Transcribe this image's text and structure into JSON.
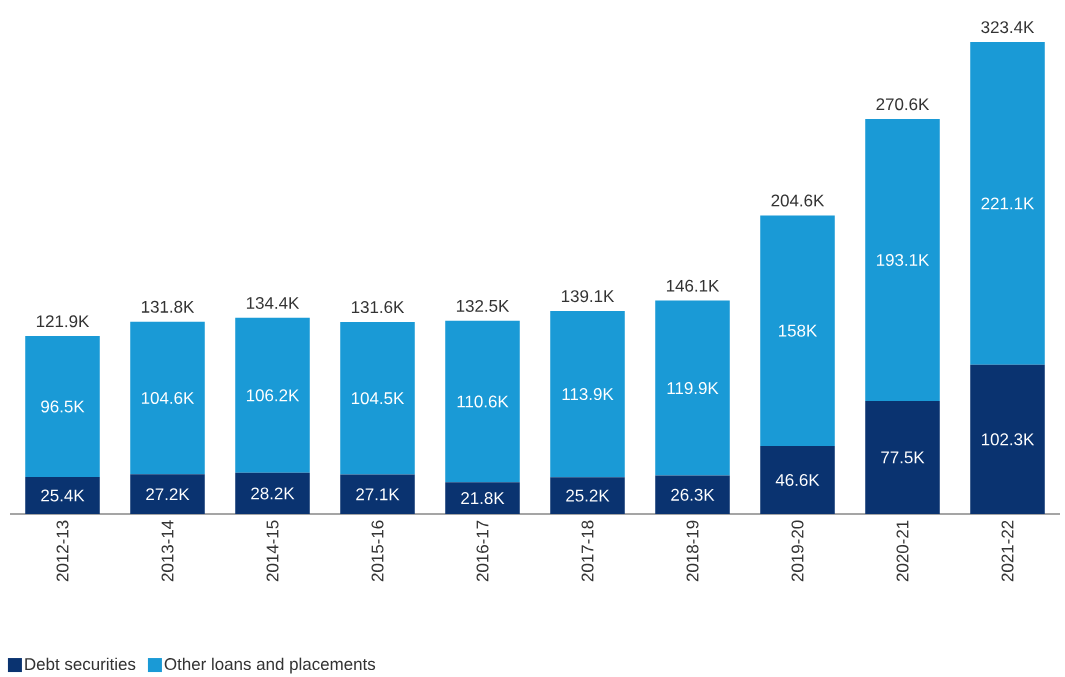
{
  "chart_data": {
    "type": "bar",
    "stacked": true,
    "legend": "bottom left",
    "categories": [
      "2012-13",
      "2013-14",
      "2014-15",
      "2015-16",
      "2016-17",
      "2017-18",
      "2018-19",
      "2019-20",
      "2020-21",
      "2021-22"
    ],
    "series": [
      {
        "name": "Debt securities",
        "color": "#0a3370",
        "values": [
          25.4,
          27.2,
          28.2,
          27.1,
          21.8,
          25.2,
          26.3,
          46.6,
          77.5,
          102.3
        ],
        "value_labels": [
          "25.4K",
          "27.2K",
          "28.2K",
          "27.1K",
          "21.8K",
          "25.2K",
          "26.3K",
          "46.6K",
          "77.5K",
          "102.3K"
        ]
      },
      {
        "name": "Other loans and placements",
        "color": "#1a9ad6",
        "values": [
          96.5,
          104.6,
          106.2,
          104.5,
          110.6,
          113.9,
          119.9,
          158,
          193.1,
          221.1
        ],
        "value_labels": [
          "96.5K",
          "104.6K",
          "106.2K",
          "104.5K",
          "110.6K",
          "113.9K",
          "119.9K",
          "158K",
          "193.1K",
          "221.1K"
        ]
      }
    ],
    "totals": [
      "121.9K",
      "131.8K",
      "134.4K",
      "131.6K",
      "132.5K",
      "139.1K",
      "146.1K",
      "204.6K",
      "270.6K",
      "323.4K"
    ]
  }
}
